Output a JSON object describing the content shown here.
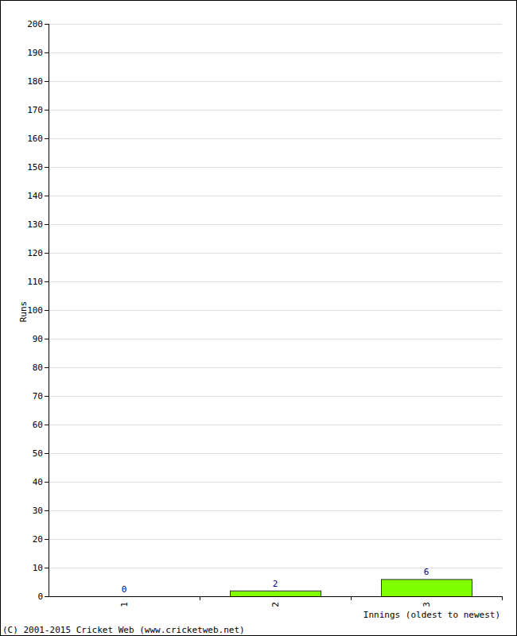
{
  "chart_data": {
    "type": "bar",
    "x_label": "Innings (oldest to newest)",
    "y_label": "Runs",
    "annotations": [
      "(C) 2001-2015 Cricket Web (www.cricketweb.net)"
    ],
    "categories": [
      "1",
      "2",
      "3"
    ],
    "values": [
      0,
      2,
      6
    ],
    "color": "#80ff00",
    "ylim": [
      0,
      200
    ],
    "yticks": [
      0,
      10,
      20,
      30,
      40,
      50,
      60,
      70,
      80,
      90,
      100,
      110,
      120,
      130,
      140,
      150,
      160,
      170,
      180,
      190,
      200
    ],
    "grid": true,
    "data_labels": true
  }
}
